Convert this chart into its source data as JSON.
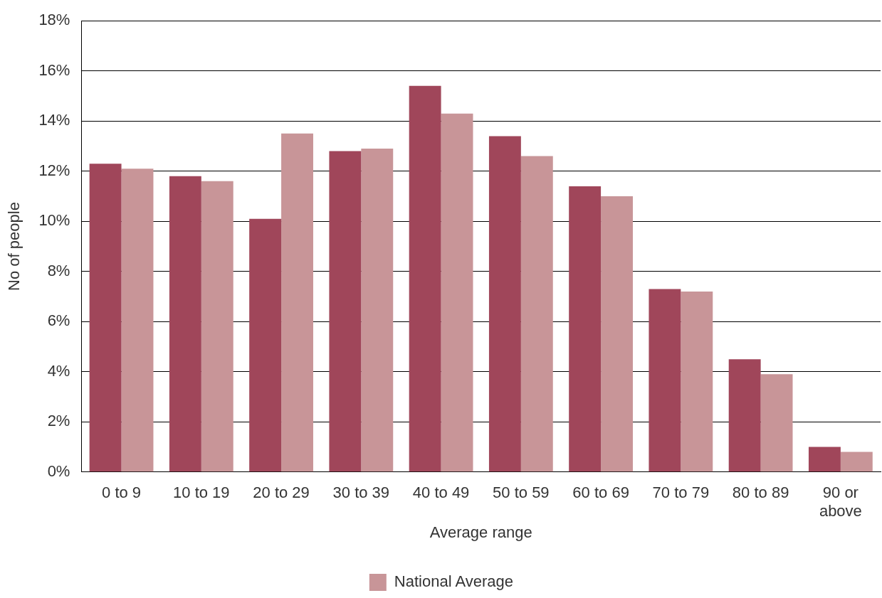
{
  "chart_data": {
    "type": "bar",
    "xlabel": "Average range",
    "ylabel": "No of people",
    "categories": [
      "0 to 9",
      "10 to 19",
      "20 to 29",
      "30 to 39",
      "40 to 49",
      "50 to 59",
      "60 to 69",
      "70 to 79",
      "80 to 89",
      "90 or above"
    ],
    "series": [
      {
        "color": "#a0465a",
        "values": [
          12.3,
          11.8,
          10.1,
          12.8,
          15.4,
          13.4,
          11.4,
          7.3,
          4.5,
          1.0
        ]
      },
      {
        "name": "National Average",
        "color": "#c89598",
        "values": [
          12.1,
          11.6,
          13.5,
          12.9,
          14.3,
          12.6,
          11.0,
          7.2,
          3.9,
          0.8
        ]
      }
    ],
    "ylim": [
      0,
      18
    ],
    "yticks": [
      {
        "value": 0,
        "label": "0%"
      },
      {
        "value": 2,
        "label": "2%"
      },
      {
        "value": 4,
        "label": "4%"
      },
      {
        "value": 6,
        "label": "6%"
      },
      {
        "value": 8,
        "label": "8%"
      },
      {
        "value": 10,
        "label": "10%"
      },
      {
        "value": 12,
        "label": "12%"
      },
      {
        "value": 14,
        "label": "14%"
      },
      {
        "value": 16,
        "label": "16%"
      },
      {
        "value": 18,
        "label": "18%"
      }
    ],
    "grid": "y",
    "legend": "bottom"
  }
}
